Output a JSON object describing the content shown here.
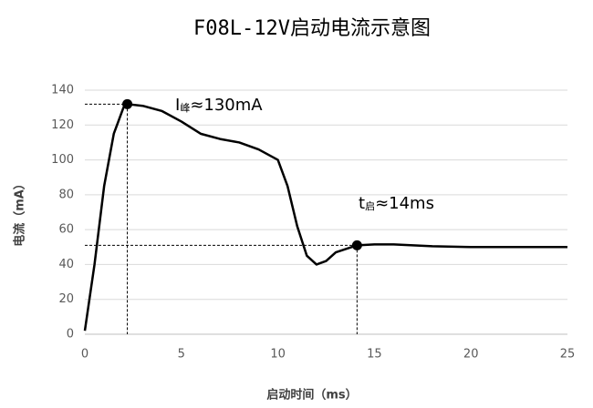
{
  "chart_data": {
    "type": "line",
    "title": "F08L-12V启动电流示意图",
    "x_label": "启动时间（ms）",
    "y_label": "电流（mA）",
    "x": [
      0,
      0.5,
      1,
      1.5,
      2,
      2.2,
      3,
      4,
      5,
      6,
      7,
      8,
      9,
      10,
      10.5,
      11,
      11.5,
      12,
      12.5,
      13,
      14.1,
      15,
      16,
      18,
      20,
      22,
      25
    ],
    "series": [
      {
        "name": "电流",
        "color": "#000000",
        "values": [
          2,
          40,
          85,
          115,
          130,
          132,
          131,
          128,
          122,
          115,
          112,
          110,
          106,
          100,
          85,
          62,
          45,
          40,
          42,
          47,
          51,
          51.5,
          51.5,
          50.5,
          50,
          50,
          50
        ]
      }
    ],
    "markers": {
      "x": [
        2.2,
        14.1
      ],
      "values": [
        132,
        51
      ]
    },
    "annotations": [
      {
        "main": "I",
        "sub": "峰",
        "tail": "≈130mA"
      },
      {
        "main": "t",
        "sub": "启",
        "tail": "≈14ms"
      }
    ],
    "xlim": [
      0,
      25
    ],
    "xticks": [
      0,
      5,
      10,
      15,
      20,
      25
    ],
    "ylim": [
      0,
      140
    ],
    "yticks": [
      0,
      20,
      40,
      60,
      80,
      100,
      120,
      140
    ],
    "grid": true
  }
}
